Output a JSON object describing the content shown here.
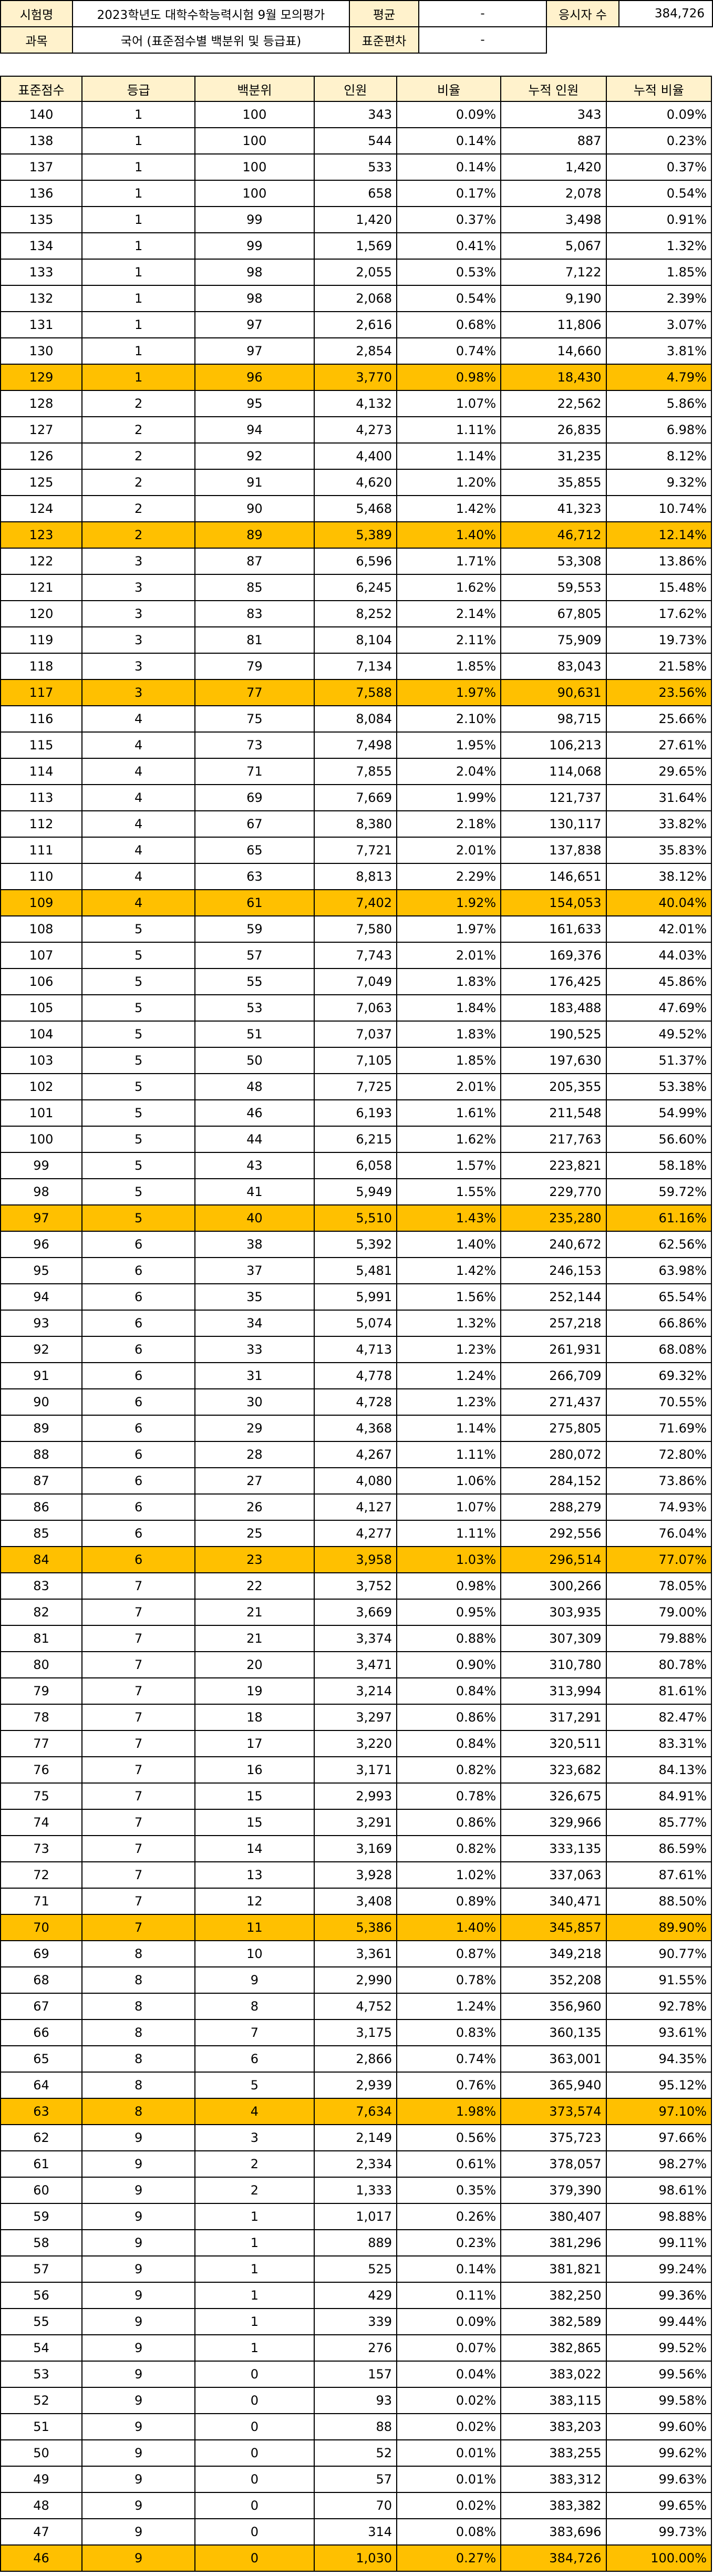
{
  "header": {
    "exam_label": "시험명",
    "exam_value": "2023학년도 대학수학능력시험 9월 모의평가",
    "mean_label": "평균",
    "mean_value": "-",
    "applicants_label": "응시자 수",
    "applicants_value": "384,726",
    "subject_label": "과목",
    "subject_value": "국어 (표준점수별 백분위 및 등급표)",
    "stddev_label": "표준편차",
    "stddev_value": "-"
  },
  "table": {
    "columns": [
      "표준점수",
      "등급",
      "백분위",
      "인원",
      "비율",
      "누적 인원",
      "누적 비율"
    ],
    "highlight_color": "#ffc000",
    "header_color": "#fff2cc",
    "rows": [
      [
        "140",
        "1",
        "100",
        "343",
        "0.09%",
        "343",
        "0.09%"
      ],
      [
        "138",
        "1",
        "100",
        "544",
        "0.14%",
        "887",
        "0.23%"
      ],
      [
        "137",
        "1",
        "100",
        "533",
        "0.14%",
        "1,420",
        "0.37%"
      ],
      [
        "136",
        "1",
        "100",
        "658",
        "0.17%",
        "2,078",
        "0.54%"
      ],
      [
        "135",
        "1",
        "99",
        "1,420",
        "0.37%",
        "3,498",
        "0.91%"
      ],
      [
        "134",
        "1",
        "99",
        "1,569",
        "0.41%",
        "5,067",
        "1.32%"
      ],
      [
        "133",
        "1",
        "98",
        "2,055",
        "0.53%",
        "7,122",
        "1.85%"
      ],
      [
        "132",
        "1",
        "98",
        "2,068",
        "0.54%",
        "9,190",
        "2.39%"
      ],
      [
        "131",
        "1",
        "97",
        "2,616",
        "0.68%",
        "11,806",
        "3.07%"
      ],
      [
        "130",
        "1",
        "97",
        "2,854",
        "0.74%",
        "14,660",
        "3.81%"
      ],
      [
        "129",
        "1",
        "96",
        "3,770",
        "0.98%",
        "18,430",
        "4.79%"
      ],
      [
        "128",
        "2",
        "95",
        "4,132",
        "1.07%",
        "22,562",
        "5.86%"
      ],
      [
        "127",
        "2",
        "94",
        "4,273",
        "1.11%",
        "26,835",
        "6.98%"
      ],
      [
        "126",
        "2",
        "92",
        "4,400",
        "1.14%",
        "31,235",
        "8.12%"
      ],
      [
        "125",
        "2",
        "91",
        "4,620",
        "1.20%",
        "35,855",
        "9.32%"
      ],
      [
        "124",
        "2",
        "90",
        "5,468",
        "1.42%",
        "41,323",
        "10.74%"
      ],
      [
        "123",
        "2",
        "89",
        "5,389",
        "1.40%",
        "46,712",
        "12.14%"
      ],
      [
        "122",
        "3",
        "87",
        "6,596",
        "1.71%",
        "53,308",
        "13.86%"
      ],
      [
        "121",
        "3",
        "85",
        "6,245",
        "1.62%",
        "59,553",
        "15.48%"
      ],
      [
        "120",
        "3",
        "83",
        "8,252",
        "2.14%",
        "67,805",
        "17.62%"
      ],
      [
        "119",
        "3",
        "81",
        "8,104",
        "2.11%",
        "75,909",
        "19.73%"
      ],
      [
        "118",
        "3",
        "79",
        "7,134",
        "1.85%",
        "83,043",
        "21.58%"
      ],
      [
        "117",
        "3",
        "77",
        "7,588",
        "1.97%",
        "90,631",
        "23.56%"
      ],
      [
        "116",
        "4",
        "75",
        "8,084",
        "2.10%",
        "98,715",
        "25.66%"
      ],
      [
        "115",
        "4",
        "73",
        "7,498",
        "1.95%",
        "106,213",
        "27.61%"
      ],
      [
        "114",
        "4",
        "71",
        "7,855",
        "2.04%",
        "114,068",
        "29.65%"
      ],
      [
        "113",
        "4",
        "69",
        "7,669",
        "1.99%",
        "121,737",
        "31.64%"
      ],
      [
        "112",
        "4",
        "67",
        "8,380",
        "2.18%",
        "130,117",
        "33.82%"
      ],
      [
        "111",
        "4",
        "65",
        "7,721",
        "2.01%",
        "137,838",
        "35.83%"
      ],
      [
        "110",
        "4",
        "63",
        "8,813",
        "2.29%",
        "146,651",
        "38.12%"
      ],
      [
        "109",
        "4",
        "61",
        "7,402",
        "1.92%",
        "154,053",
        "40.04%"
      ],
      [
        "108",
        "5",
        "59",
        "7,580",
        "1.97%",
        "161,633",
        "42.01%"
      ],
      [
        "107",
        "5",
        "57",
        "7,743",
        "2.01%",
        "169,376",
        "44.03%"
      ],
      [
        "106",
        "5",
        "55",
        "7,049",
        "1.83%",
        "176,425",
        "45.86%"
      ],
      [
        "105",
        "5",
        "53",
        "7,063",
        "1.84%",
        "183,488",
        "47.69%"
      ],
      [
        "104",
        "5",
        "51",
        "7,037",
        "1.83%",
        "190,525",
        "49.52%"
      ],
      [
        "103",
        "5",
        "50",
        "7,105",
        "1.85%",
        "197,630",
        "51.37%"
      ],
      [
        "102",
        "5",
        "48",
        "7,725",
        "2.01%",
        "205,355",
        "53.38%"
      ],
      [
        "101",
        "5",
        "46",
        "6,193",
        "1.61%",
        "211,548",
        "54.99%"
      ],
      [
        "100",
        "5",
        "44",
        "6,215",
        "1.62%",
        "217,763",
        "56.60%"
      ],
      [
        "99",
        "5",
        "43",
        "6,058",
        "1.57%",
        "223,821",
        "58.18%"
      ],
      [
        "98",
        "5",
        "41",
        "5,949",
        "1.55%",
        "229,770",
        "59.72%"
      ],
      [
        "97",
        "5",
        "40",
        "5,510",
        "1.43%",
        "235,280",
        "61.16%"
      ],
      [
        "96",
        "6",
        "38",
        "5,392",
        "1.40%",
        "240,672",
        "62.56%"
      ],
      [
        "95",
        "6",
        "37",
        "5,481",
        "1.42%",
        "246,153",
        "63.98%"
      ],
      [
        "94",
        "6",
        "35",
        "5,991",
        "1.56%",
        "252,144",
        "65.54%"
      ],
      [
        "93",
        "6",
        "34",
        "5,074",
        "1.32%",
        "257,218",
        "66.86%"
      ],
      [
        "92",
        "6",
        "33",
        "4,713",
        "1.23%",
        "261,931",
        "68.08%"
      ],
      [
        "91",
        "6",
        "31",
        "4,778",
        "1.24%",
        "266,709",
        "69.32%"
      ],
      [
        "90",
        "6",
        "30",
        "4,728",
        "1.23%",
        "271,437",
        "70.55%"
      ],
      [
        "89",
        "6",
        "29",
        "4,368",
        "1.14%",
        "275,805",
        "71.69%"
      ],
      [
        "88",
        "6",
        "28",
        "4,267",
        "1.11%",
        "280,072",
        "72.80%"
      ],
      [
        "87",
        "6",
        "27",
        "4,080",
        "1.06%",
        "284,152",
        "73.86%"
      ],
      [
        "86",
        "6",
        "26",
        "4,127",
        "1.07%",
        "288,279",
        "74.93%"
      ],
      [
        "85",
        "6",
        "25",
        "4,277",
        "1.11%",
        "292,556",
        "76.04%"
      ],
      [
        "84",
        "6",
        "23",
        "3,958",
        "1.03%",
        "296,514",
        "77.07%"
      ],
      [
        "83",
        "7",
        "22",
        "3,752",
        "0.98%",
        "300,266",
        "78.05%"
      ],
      [
        "82",
        "7",
        "21",
        "3,669",
        "0.95%",
        "303,935",
        "79.00%"
      ],
      [
        "81",
        "7",
        "21",
        "3,374",
        "0.88%",
        "307,309",
        "79.88%"
      ],
      [
        "80",
        "7",
        "20",
        "3,471",
        "0.90%",
        "310,780",
        "80.78%"
      ],
      [
        "79",
        "7",
        "19",
        "3,214",
        "0.84%",
        "313,994",
        "81.61%"
      ],
      [
        "78",
        "7",
        "18",
        "3,297",
        "0.86%",
        "317,291",
        "82.47%"
      ],
      [
        "77",
        "7",
        "17",
        "3,220",
        "0.84%",
        "320,511",
        "83.31%"
      ],
      [
        "76",
        "7",
        "16",
        "3,171",
        "0.82%",
        "323,682",
        "84.13%"
      ],
      [
        "75",
        "7",
        "15",
        "2,993",
        "0.78%",
        "326,675",
        "84.91%"
      ],
      [
        "74",
        "7",
        "15",
        "3,291",
        "0.86%",
        "329,966",
        "85.77%"
      ],
      [
        "73",
        "7",
        "14",
        "3,169",
        "0.82%",
        "333,135",
        "86.59%"
      ],
      [
        "72",
        "7",
        "13",
        "3,928",
        "1.02%",
        "337,063",
        "87.61%"
      ],
      [
        "71",
        "7",
        "12",
        "3,408",
        "0.89%",
        "340,471",
        "88.50%"
      ],
      [
        "70",
        "7",
        "11",
        "5,386",
        "1.40%",
        "345,857",
        "89.90%"
      ],
      [
        "69",
        "8",
        "10",
        "3,361",
        "0.87%",
        "349,218",
        "90.77%"
      ],
      [
        "68",
        "8",
        "9",
        "2,990",
        "0.78%",
        "352,208",
        "91.55%"
      ],
      [
        "67",
        "8",
        "8",
        "4,752",
        "1.24%",
        "356,960",
        "92.78%"
      ],
      [
        "66",
        "8",
        "7",
        "3,175",
        "0.83%",
        "360,135",
        "93.61%"
      ],
      [
        "65",
        "8",
        "6",
        "2,866",
        "0.74%",
        "363,001",
        "94.35%"
      ],
      [
        "64",
        "8",
        "5",
        "2,939",
        "0.76%",
        "365,940",
        "95.12%"
      ],
      [
        "63",
        "8",
        "4",
        "7,634",
        "1.98%",
        "373,574",
        "97.10%"
      ],
      [
        "62",
        "9",
        "3",
        "2,149",
        "0.56%",
        "375,723",
        "97.66%"
      ],
      [
        "61",
        "9",
        "2",
        "2,334",
        "0.61%",
        "378,057",
        "98.27%"
      ],
      [
        "60",
        "9",
        "2",
        "1,333",
        "0.35%",
        "379,390",
        "98.61%"
      ],
      [
        "59",
        "9",
        "1",
        "1,017",
        "0.26%",
        "380,407",
        "98.88%"
      ],
      [
        "58",
        "9",
        "1",
        "889",
        "0.23%",
        "381,296",
        "99.11%"
      ],
      [
        "57",
        "9",
        "1",
        "525",
        "0.14%",
        "381,821",
        "99.24%"
      ],
      [
        "56",
        "9",
        "1",
        "429",
        "0.11%",
        "382,250",
        "99.36%"
      ],
      [
        "55",
        "9",
        "1",
        "339",
        "0.09%",
        "382,589",
        "99.44%"
      ],
      [
        "54",
        "9",
        "1",
        "276",
        "0.07%",
        "382,865",
        "99.52%"
      ],
      [
        "53",
        "9",
        "0",
        "157",
        "0.04%",
        "383,022",
        "99.56%"
      ],
      [
        "52",
        "9",
        "0",
        "93",
        "0.02%",
        "383,115",
        "99.58%"
      ],
      [
        "51",
        "9",
        "0",
        "88",
        "0.02%",
        "383,203",
        "99.60%"
      ],
      [
        "50",
        "9",
        "0",
        "52",
        "0.01%",
        "383,255",
        "99.62%"
      ],
      [
        "49",
        "9",
        "0",
        "57",
        "0.01%",
        "383,312",
        "99.63%"
      ],
      [
        "48",
        "9",
        "0",
        "70",
        "0.02%",
        "383,382",
        "99.65%"
      ],
      [
        "47",
        "9",
        "0",
        "314",
        "0.08%",
        "383,696",
        "99.73%"
      ],
      [
        "46",
        "9",
        "0",
        "1,030",
        "0.27%",
        "384,726",
        "100.00%"
      ]
    ],
    "highlighted_scores": [
      "129",
      "123",
      "117",
      "109",
      "97",
      "84",
      "70",
      "63",
      "46"
    ]
  }
}
